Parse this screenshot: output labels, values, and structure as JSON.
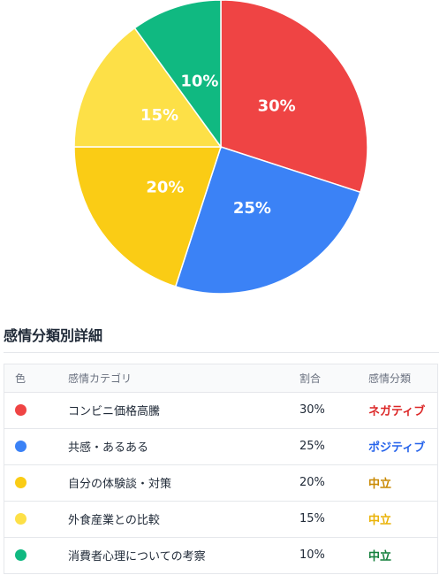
{
  "chart_data": {
    "type": "pie",
    "slices": [
      {
        "label": "コンビニ価格高騰",
        "value": 30,
        "display": "30%",
        "color": "#ef4444"
      },
      {
        "label": "共感・あるある",
        "value": 25,
        "display": "25%",
        "color": "#3b82f6"
      },
      {
        "label": "自分の体験談・対策",
        "value": 20,
        "display": "20%",
        "color": "#facc15"
      },
      {
        "label": "外食産業との比較",
        "value": 15,
        "display": "15%",
        "color": "#fde047"
      },
      {
        "label": "消費者心理についての考察",
        "value": 10,
        "display": "10%",
        "color": "#10b981"
      }
    ]
  },
  "section": {
    "title": "感情分類別詳細"
  },
  "table": {
    "headers": {
      "color": "色",
      "category": "感情カテゴリ",
      "ratio": "割合",
      "sentiment": "感情分類"
    },
    "rows": [
      {
        "category": "コンビニ価格高騰",
        "ratio": "30%",
        "sentiment": "ネガティブ",
        "dot_color": "#ef4444",
        "sentiment_color": "#dc2626"
      },
      {
        "category": "共感・あるある",
        "ratio": "25%",
        "sentiment": "ポジティブ",
        "dot_color": "#3b82f6",
        "sentiment_color": "#2563eb"
      },
      {
        "category": "自分の体験談・対策",
        "ratio": "20%",
        "sentiment": "中立",
        "dot_color": "#facc15",
        "sentiment_color": "#ca8a04"
      },
      {
        "category": "外食産業との比較",
        "ratio": "15%",
        "sentiment": "中立",
        "dot_color": "#fde047",
        "sentiment_color": "#eab308"
      },
      {
        "category": "消費者心理についての考察",
        "ratio": "10%",
        "sentiment": "中立",
        "dot_color": "#10b981",
        "sentiment_color": "#15803d"
      }
    ]
  }
}
